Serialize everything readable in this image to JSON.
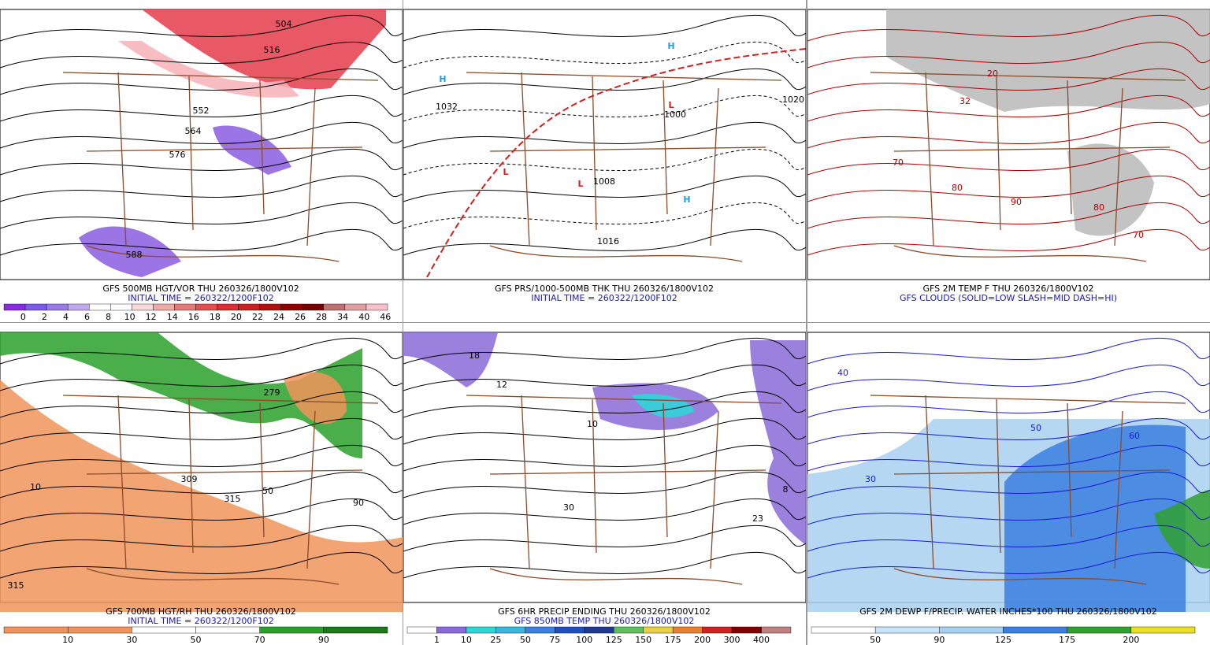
{
  "panels": [
    {
      "caption": [
        "GFS 500MB HGT/VOR THU 260326/1800V102",
        "INITIAL TIME = 260322/1200F102"
      ],
      "colorbar": [
        0,
        2,
        4,
        6,
        8,
        10,
        12,
        14,
        16,
        18,
        20,
        22,
        24,
        26,
        28,
        34,
        40,
        46
      ],
      "labels": [
        "504",
        "516",
        "552",
        "564",
        "576",
        "588"
      ]
    },
    {
      "caption": [
        "GFS PRS/1000-500MB THK THU 260326/1800V102",
        "INITIAL TIME = 260322/1200F102"
      ],
      "labels": [
        "1032",
        "1008",
        "1016",
        "1000",
        "1020",
        "H",
        "H",
        "H",
        "L",
        "L",
        "L"
      ]
    },
    {
      "caption": [
        "GFS 2M TEMP F THU 260326/1800V102",
        "GFS CLOUDS (SOLID=LOW SLASH=MID DASH=HI)"
      ],
      "labels": [
        "80",
        "70",
        "90",
        "32",
        "20",
        "80",
        "70"
      ]
    },
    {
      "caption": [
        "GFS 700MB HGT/RH THU 260326/1800V102",
        "INITIAL TIME = 260322/1200F102"
      ],
      "colorbar": [
        10,
        30,
        50,
        70,
        90
      ],
      "labels": [
        "279",
        "309",
        "315",
        "50",
        "10",
        "315",
        "90"
      ]
    },
    {
      "caption": [
        "GFS 6HR PRECIP ENDING THU 260326/1800V102",
        "GFS 850MB TEMP THU 260326/1800V102"
      ],
      "colorbar": [
        1,
        10,
        25,
        50,
        75,
        100,
        125,
        150,
        175,
        200,
        300,
        400
      ],
      "labels": [
        "18",
        "12",
        "23",
        "8",
        "30",
        "10"
      ]
    },
    {
      "caption": [
        "GFS 2M DEWP F/PRECIP. WATER INCHES*100 THU 260326/1800V102"
      ],
      "colorbar": [
        50,
        90,
        125,
        175,
        200
      ],
      "labels": [
        "40",
        "50",
        "30",
        "60"
      ]
    }
  ]
}
